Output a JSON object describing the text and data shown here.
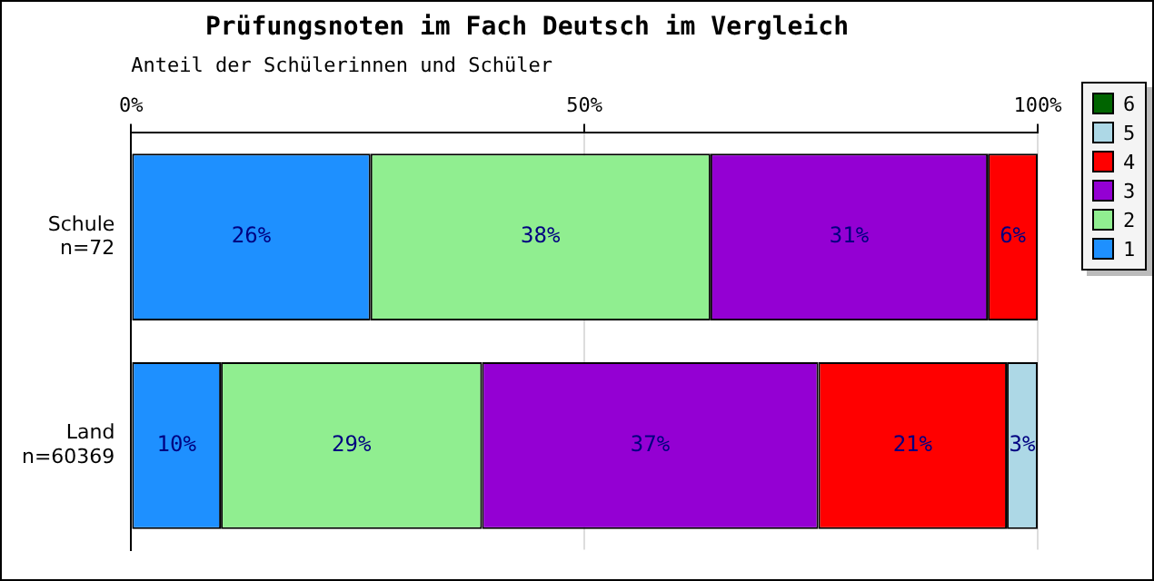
{
  "chart_data": {
    "type": "bar",
    "orientation": "horizontal",
    "stacked": true,
    "title": "Prüfungsnoten im Fach Deutsch im Vergleich",
    "xlabel": "Anteil der Schülerinnen und Schüler",
    "categories": [
      "Schule\nn=72",
      "Land\nn=60369"
    ],
    "xlim": [
      0,
      100
    ],
    "xticks": [
      {
        "value": 0,
        "label": "0%"
      },
      {
        "value": 50,
        "label": "50%"
      },
      {
        "value": 100,
        "label": "100%"
      }
    ],
    "grid": "x",
    "legend": "right",
    "series": [
      {
        "name": "1",
        "color": "#1e90ff",
        "values": [
          26.4,
          9.9
        ],
        "value_labels": [
          "26%",
          "10%"
        ]
      },
      {
        "name": "2",
        "color": "#90ee90",
        "values": [
          37.5,
          28.8
        ],
        "value_labels": [
          "38%",
          "29%"
        ]
      },
      {
        "name": "3",
        "color": "#9400d3",
        "values": [
          30.6,
          37.1
        ],
        "value_labels": [
          "31%",
          "37%"
        ]
      },
      {
        "name": "4",
        "color": "#ff0000",
        "values": [
          5.5,
          20.8
        ],
        "value_labels": [
          "6%",
          "21%"
        ]
      },
      {
        "name": "5",
        "color": "#add8e6",
        "values": [
          0,
          3.4
        ],
        "value_labels": [
          null,
          "3%"
        ]
      },
      {
        "name": "6",
        "color": "#006400",
        "values": [
          0,
          0
        ],
        "value_labels": [
          null,
          null
        ]
      }
    ]
  }
}
